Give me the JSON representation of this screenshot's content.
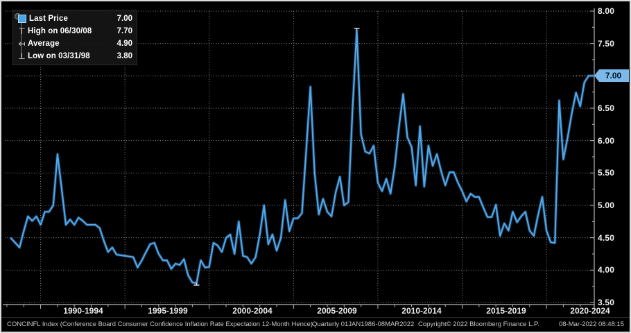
{
  "legend": {
    "items": [
      {
        "marker": "last-price-square",
        "glyph": "",
        "label": "Last Price",
        "value": "7.00"
      },
      {
        "marker": "high-marker",
        "glyph": "⊤",
        "label": "High on 06/30/08",
        "value": "7.70"
      },
      {
        "marker": "average-marker",
        "glyph": "↤",
        "label": "Average",
        "value": "4.90"
      },
      {
        "marker": "low-marker",
        "glyph": "⊥",
        "label": "Low on 03/31/98",
        "value": "3.80"
      }
    ]
  },
  "y_axis": {
    "ticks": [
      "8.00",
      "7.50",
      "7.00",
      "6.50",
      "6.00",
      "5.50",
      "5.00",
      "4.50",
      "4.00",
      "3.50"
    ],
    "last_price_tag": "7.00"
  },
  "footer": {
    "title": "CONCINFL Index (Conference Board Consumer Confidence Inflation Rate Expectation 12-Month Hence)",
    "range": "Quarterly 01JAN1986-08MAR2022",
    "copyright": "Copyright© 2022 Bloomberg Finance L.P.",
    "timestamp": "08-Mar-2022 08:48:15"
  },
  "colors": {
    "background": "#000000",
    "line": "#53a7e8",
    "line_glow": "#2c6ea8",
    "grid": "rgba(255,255,255,0.55)",
    "axis": "#b8b8b8",
    "marker": "#e8e8e8",
    "tag_bg": "#79b9ec"
  },
  "chart_data": {
    "type": "line",
    "title": "Conference Board Consumer Confidence Inflation Rate Expectation 12-Month Hence (CONCINFL Index)",
    "frequency": "quarterly",
    "x_start_year": 1988.25,
    "points_per_year": 4,
    "x_end": "2022-Q1",
    "x_tick_labels": [
      "1990-1994",
      "1995-1999",
      "2000-2004",
      "2005-2009",
      "2010-2014",
      "2015-2019",
      "2020-2024"
    ],
    "x_gridline_years": [
      1990,
      1995,
      2000,
      2005,
      2010,
      2015,
      2020
    ],
    "ylim": [
      3.5,
      8.0
    ],
    "y_tick_step": 0.5,
    "grid": true,
    "legend_position": "top-left",
    "stats": {
      "last": 7.0,
      "high": 7.7,
      "high_date": "06/30/08",
      "average": 4.9,
      "low": 3.8,
      "low_date": "03/31/98"
    },
    "series": [
      {
        "name": "Last Price",
        "values": [
          4.49,
          4.42,
          4.35,
          4.6,
          4.83,
          4.76,
          4.83,
          4.7,
          4.9,
          4.9,
          5.0,
          5.79,
          5.25,
          4.7,
          4.78,
          4.7,
          4.81,
          4.76,
          4.7,
          4.7,
          4.7,
          4.65,
          4.45,
          4.28,
          4.35,
          4.24,
          4.23,
          4.22,
          4.21,
          4.2,
          4.04,
          4.15,
          4.28,
          4.4,
          4.42,
          4.25,
          4.15,
          4.15,
          4.02,
          4.1,
          4.08,
          4.17,
          3.92,
          3.81,
          3.8,
          4.15,
          4.04,
          4.05,
          4.42,
          4.38,
          4.28,
          4.5,
          4.55,
          4.25,
          4.75,
          4.22,
          4.2,
          4.1,
          4.2,
          4.55,
          5.0,
          4.4,
          4.55,
          4.3,
          4.5,
          5.08,
          4.6,
          4.8,
          4.8,
          4.88,
          5.85,
          6.83,
          5.5,
          4.86,
          5.1,
          4.9,
          4.83,
          5.2,
          5.44,
          5.0,
          5.05,
          6.5,
          7.7,
          6.1,
          5.83,
          5.8,
          5.92,
          5.35,
          5.22,
          5.41,
          5.18,
          5.6,
          6.2,
          6.72,
          6.05,
          5.9,
          5.31,
          6.22,
          5.29,
          5.92,
          5.61,
          5.79,
          5.53,
          5.31,
          5.51,
          5.51,
          5.35,
          5.22,
          5.06,
          5.18,
          5.13,
          5.13,
          4.97,
          4.82,
          4.82,
          5.01,
          4.53,
          4.72,
          4.61,
          4.9,
          4.74,
          4.83,
          4.9,
          4.61,
          4.53,
          4.85,
          5.13,
          4.61,
          4.43,
          4.42,
          6.62,
          5.71,
          6.04,
          6.42,
          6.74,
          6.53,
          6.9,
          7.0,
          7.0
        ]
      }
    ]
  }
}
